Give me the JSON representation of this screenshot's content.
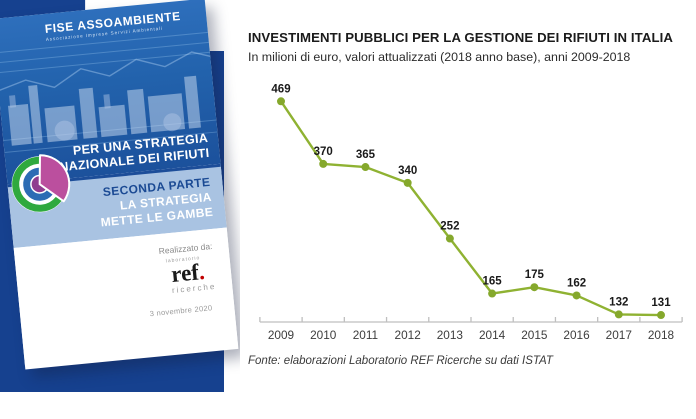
{
  "cover": {
    "brand_name": "FISE ASSOAMBIENTE",
    "brand_tagline": "Associazione Imprese Servizi Ambientali",
    "title_lines": [
      "PER UNA STRATEGIA",
      "NAZIONALE DEI RIFIUTI"
    ],
    "part_label": "SECONDA PARTE",
    "part_title_lines": [
      "LA STRATEGIA",
      "METTE LE GAMBE"
    ],
    "credit_label": "Realizzato da:",
    "publisher_top": "laboratorio",
    "publisher_name": "ref",
    "publisher_dot": ".",
    "publisher_bottom": "ricerche",
    "date": "3 novembre 2020"
  },
  "chart": {
    "title": "INVESTIMENTI PUBBLICI PER LA GESTIONE DEI RIFIUTI IN ITALIA",
    "subtitle": "In milioni di euro, valori attualizzati (2018 anno base), anni 2009-2018",
    "source": "Fonte: elaborazioni Laboratorio REF Ricerche su dati ISTAT"
  },
  "chart_data": {
    "type": "line",
    "title": "INVESTIMENTI PUBBLICI PER LA GESTIONE DEI RIFIUTI IN ITALIA",
    "subtitle": "In milioni di euro, valori attualizzati (2018 anno base), anni 2009-2018",
    "categories": [
      "2009",
      "2010",
      "2011",
      "2012",
      "2013",
      "2014",
      "2015",
      "2016",
      "2017",
      "2018"
    ],
    "values": [
      469,
      370,
      365,
      340,
      252,
      165,
      175,
      162,
      132,
      131
    ],
    "xlabel": "",
    "ylabel": "",
    "ylim": [
      120,
      490
    ],
    "grid": false,
    "legend": "none",
    "data_labels": true,
    "line_color": "#8FB232",
    "marker_color": "#85A82C",
    "axis_color": "#BFBFBF",
    "label_color": "#1A1A1A",
    "source": "Fonte: elaborazioni Laboratorio REF Ricerche su dati ISTAT"
  },
  "colors": {
    "cover_blue": "#2262AC",
    "band_light_blue": "#A9C3E2",
    "backdrop_navy": "#16418F",
    "logo_green": "#2FA93E",
    "logo_blue_ring": "#2C6CB4",
    "logo_magenta": "#BB4F9E",
    "ref_red": "#C00000"
  }
}
